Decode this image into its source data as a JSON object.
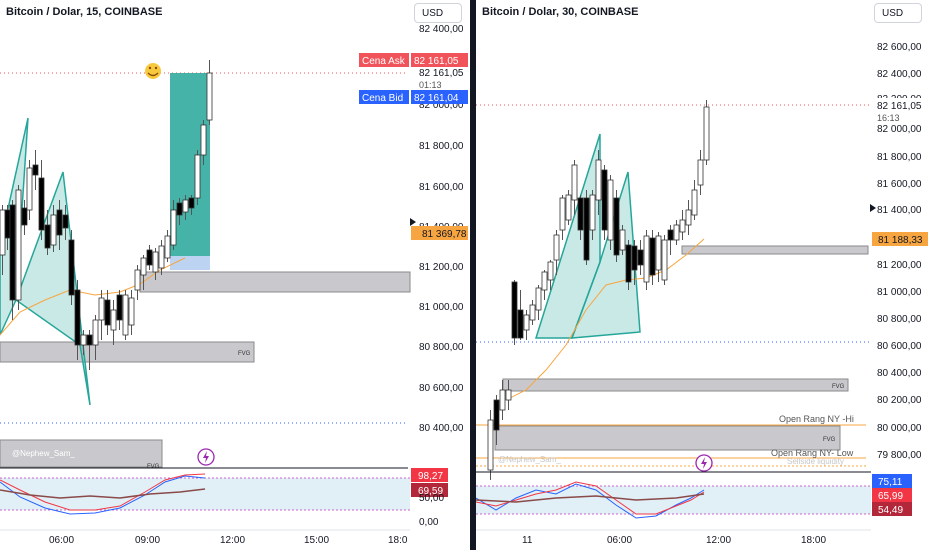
{
  "colors": {
    "bull": "#ffffff",
    "bear": "#000000",
    "wick": "#555555",
    "harmonic_fill": "#26a69a",
    "ask": "#f0545a",
    "bid": "#2962ff",
    "last_price": "#f7a540",
    "ma_line": "#f7a540",
    "stoch_k": "#2962ff",
    "stoch_d": "#f23645",
    "rsi": "#8a4a4a",
    "rsi_badge": "#b2283a",
    "zone_fill": "#c9c9cd"
  },
  "left_chart": {
    "title": "Bitcoin / Dolar, 15, COINBASE",
    "currency": "USD",
    "ask_label": "Cena Ask",
    "ask_value": "82 161,05",
    "bid_label": "Cena Bid",
    "bid_value": "82 161,04",
    "price_now": "82 161,05",
    "countdown": "01:13",
    "marker_price": "81 369,78",
    "price_axis": [
      "82 400,00",
      "82 000,00",
      "81 800,00",
      "81 600,00",
      "81 400,00",
      "81 200,00",
      "81 000,00",
      "80 800,00",
      "80 600,00",
      "80 400,00"
    ],
    "time_axis": [
      "06:00",
      "09:00",
      "12:00",
      "15:00",
      "18:0"
    ],
    "fvg_label": "FVG",
    "fvg_label_2": "FVG",
    "watermark": "@Nephew_Sam_",
    "indicator_values": [
      "98,27",
      "69,59",
      "50,00",
      "0,00"
    ]
  },
  "right_chart": {
    "title": "Bitcoin / Dolar, 30, COINBASE",
    "currency": "USD",
    "price_now": "82 161,05",
    "countdown": "16:13",
    "marker_price": "81 188,33",
    "price_axis": [
      "82 600,00",
      "82 400,00",
      "82 200,00",
      "82 000,00",
      "81 800,00",
      "81 600,00",
      "81 400,00",
      "81 200,00",
      "81 000,00",
      "80 800,00",
      "80 600,00",
      "80 400,00",
      "80 200,00",
      "80 000,00",
      "79 800,00",
      "79 600,00"
    ],
    "time_axis": [
      "11",
      "06:00",
      "12:00",
      "18:00"
    ],
    "fvg_label": "FVG",
    "fvg_label_2": "FVG",
    "open_range_hi": "Open Rang NY -Hi",
    "open_range_low": "Open Rang NY- Low",
    "liquidity_label": "Sellside liquidity",
    "watermark": "@Nephew_Sam_",
    "indicator_values": [
      "75,11",
      "65,99",
      "54,49"
    ]
  }
}
